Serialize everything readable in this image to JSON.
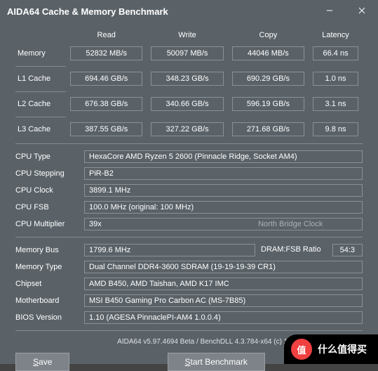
{
  "title": "AIDA64 Cache & Memory Benchmark",
  "columns": [
    "Read",
    "Write",
    "Copy",
    "Latency"
  ],
  "benchRows": [
    {
      "label": "Memory",
      "vals": [
        "52832 MB/s",
        "50097 MB/s",
        "44046 MB/s",
        "66.4 ns"
      ]
    },
    {
      "label": "L1 Cache",
      "vals": [
        "694.46 GB/s",
        "348.23 GB/s",
        "690.29 GB/s",
        "1.0 ns"
      ]
    },
    {
      "label": "L2 Cache",
      "vals": [
        "676.38 GB/s",
        "340.66 GB/s",
        "596.19 GB/s",
        "3.1 ns"
      ]
    },
    {
      "label": "L3 Cache",
      "vals": [
        "387.55 GB/s",
        "327.22 GB/s",
        "271.68 GB/s",
        "9.8 ns"
      ]
    }
  ],
  "info1": [
    {
      "label": "CPU Type",
      "val": "HexaCore AMD Ryzen 5 2600  (Pinnacle Ridge, Socket AM4)"
    },
    {
      "label": "CPU Stepping",
      "val": "PiR-B2"
    },
    {
      "label": "CPU Clock",
      "val": "3899.1 MHz"
    },
    {
      "label": "CPU FSB",
      "val": "100.0 MHz  (original: 100 MHz)"
    }
  ],
  "cpuMult": {
    "label": "CPU Multiplier",
    "val": "39x",
    "nbclock": "North Bridge Clock"
  },
  "memBus": {
    "label": "Memory Bus",
    "val": "1799.6 MHz",
    "ratioLabel": "DRAM:FSB Ratio",
    "ratio": "54:3"
  },
  "info2": [
    {
      "label": "Memory Type",
      "val": "Dual Channel DDR4-3600 SDRAM  (19-19-19-39 CR1)"
    },
    {
      "label": "Chipset",
      "val": "AMD B450, AMD Taishan, AMD K17 IMC"
    },
    {
      "label": "Motherboard",
      "val": "MSI B450 Gaming Pro Carbon AC (MS-7B85)"
    },
    {
      "label": "BIOS Version",
      "val": "1.10  (AGESA  PinnaclePI-AM4 1.0.0.4)"
    }
  ],
  "footer": "AIDA64 v5.97.4694 Beta / BenchDLL 4.3.784-x64  (c) 1995-2018 FinalWire Ltd.",
  "buttons": {
    "save": "ave",
    "start": "tart Benchmark"
  },
  "watermark": {
    "circle": "值",
    "text": "什么值得买"
  }
}
